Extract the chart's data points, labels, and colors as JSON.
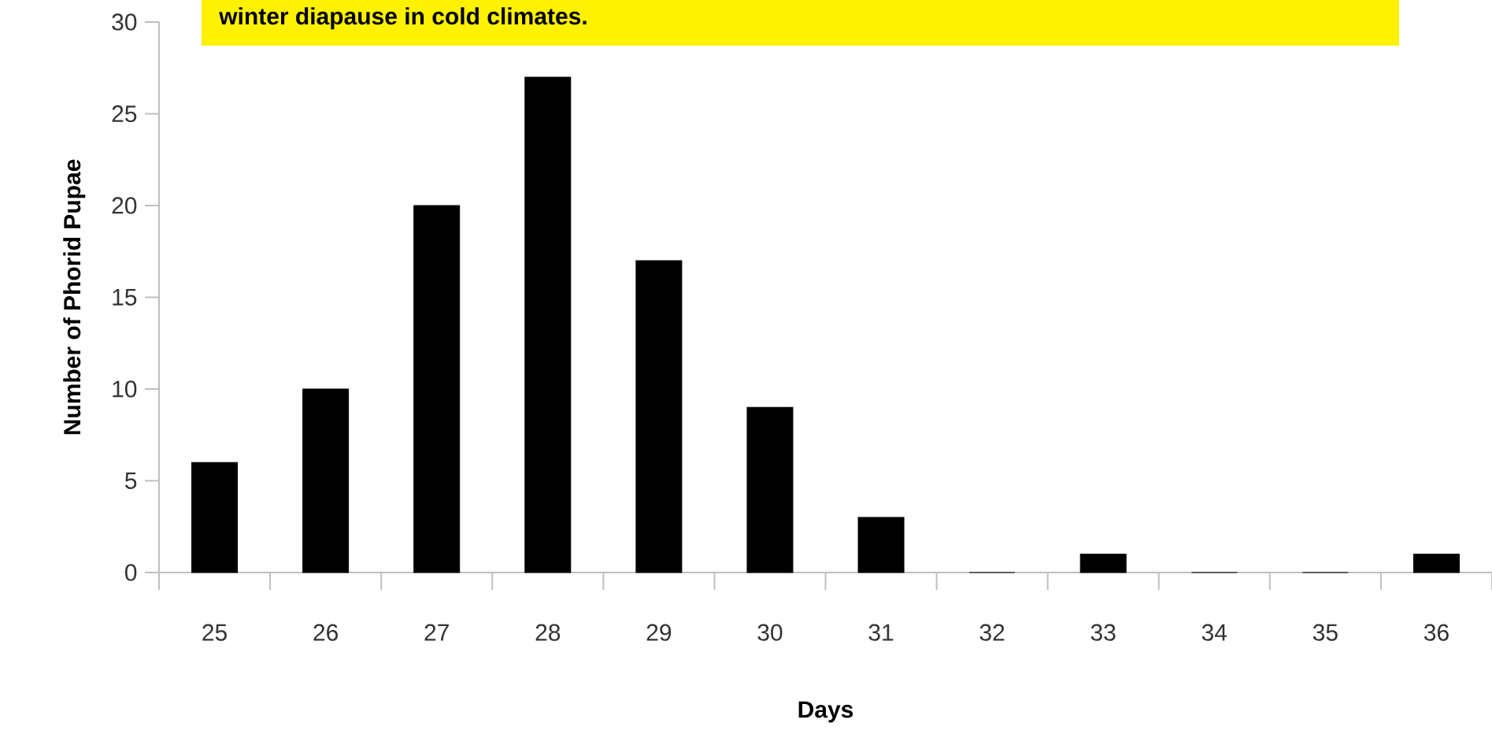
{
  "chart_data": {
    "type": "bar",
    "categories": [
      "25",
      "26",
      "27",
      "28",
      "29",
      "30",
      "31",
      "32",
      "33",
      "34",
      "35",
      "36"
    ],
    "values": [
      6,
      10,
      20,
      27,
      17,
      9,
      3,
      0,
      1,
      0,
      0,
      1
    ],
    "color": "#000000",
    "xlabel": "Days",
    "ylabel": "Number of Phorid Pupae",
    "ylim": [
      0,
      30
    ],
    "yticks": [
      0,
      5,
      10,
      15,
      20,
      25,
      30
    ],
    "grid": false,
    "annotations": [
      "winter diapause in cold climates."
    ]
  }
}
